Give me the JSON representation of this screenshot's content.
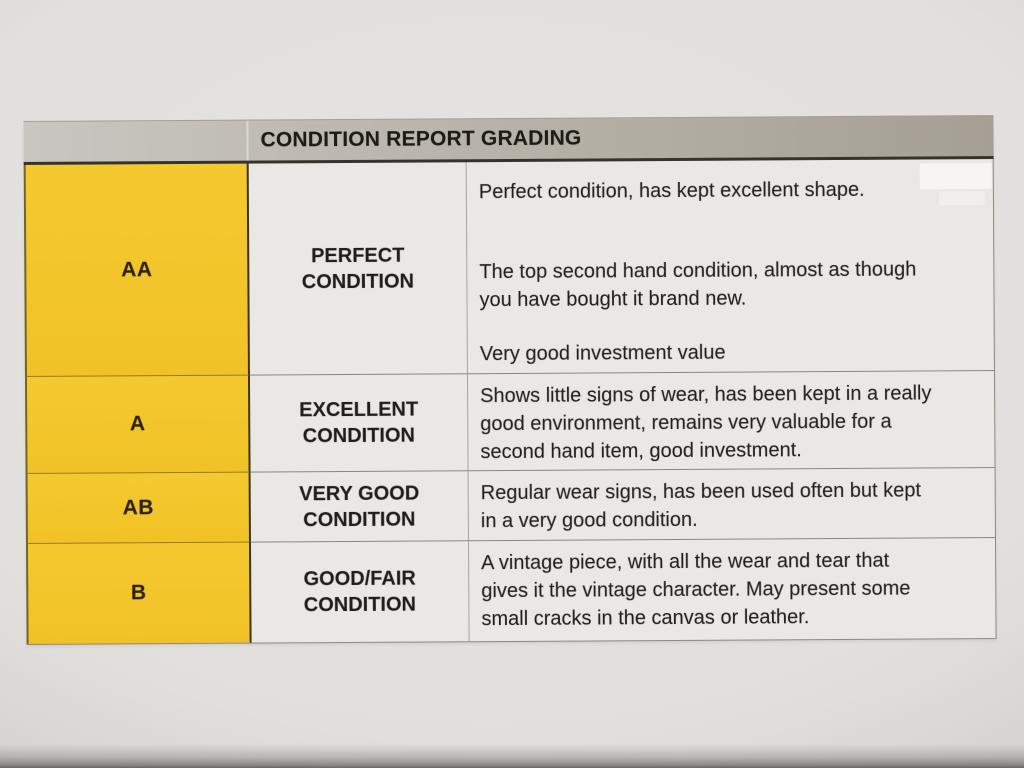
{
  "table": {
    "title": "CONDITION REPORT GRADING",
    "rows": [
      {
        "grade": "AA",
        "label": "PERFECT\nCONDITION",
        "paragraphs": [
          "Perfect condition, has kept excellent shape.",
          "The top second hand condition, almost as though\nyou have bought it brand new.",
          "Very good investment value"
        ]
      },
      {
        "grade": "A",
        "label": "EXCELLENT\nCONDITION",
        "paragraphs": [
          "Shows little signs of wear, has been kept in a really\ngood environment, remains very valuable for a\nsecond hand item, good investment."
        ]
      },
      {
        "grade": "AB",
        "label": "VERY GOOD\nCONDITION",
        "paragraphs": [
          "Regular wear signs, has been used often but kept\nin a very good condition."
        ]
      },
      {
        "grade": "B",
        "label": "GOOD/FAIR\nCONDITION",
        "paragraphs": [
          "A vintage piece, with all the wear and tear that\ngives it the vintage character. May present some\nsmall cracks in the canvas or leather."
        ]
      }
    ],
    "colors": {
      "grade_column_yellow": "#f2c52a",
      "header_bar_gray": "#b5b0a8",
      "cell_background": "#eae8e4",
      "text": "#24201b"
    }
  }
}
